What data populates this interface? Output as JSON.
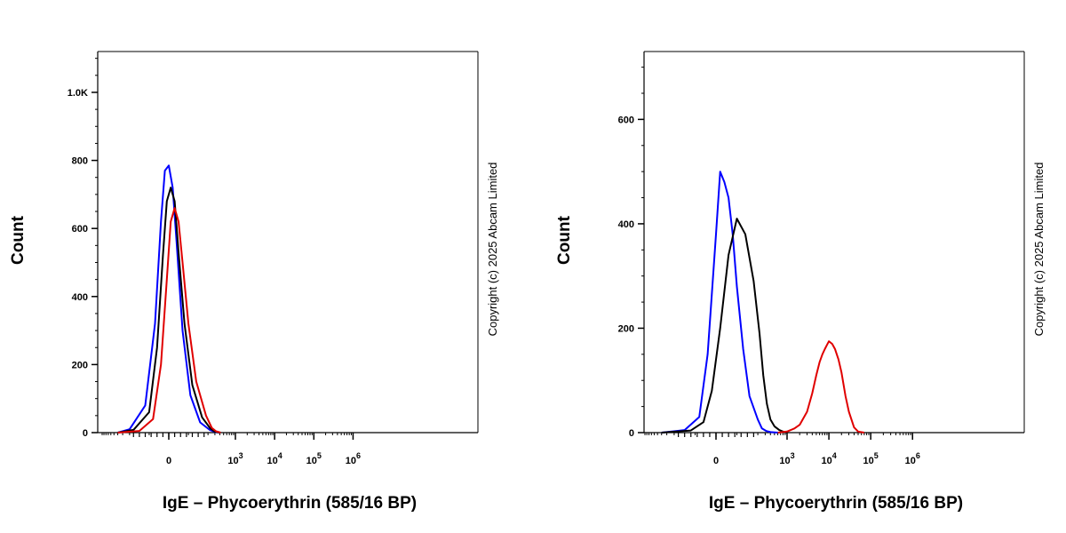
{
  "chart_data": [
    {
      "type": "line",
      "ylabel": "Count",
      "xlabel": "IgE – Phycoerythrin (585/16 BP)",
      "copyright": "Copyright (c) 2025 Abcam Limited",
      "x_scale": "biexponential",
      "xlim": [
        -400,
        1000000
      ],
      "ylim": [
        0,
        1120
      ],
      "y_ticks": [
        0,
        200,
        400,
        600,
        800,
        1000
      ],
      "y_tick_labels": [
        "0",
        "200",
        "400",
        "600",
        "800",
        "1.0K"
      ],
      "x_ticks": [
        0,
        1000,
        10000,
        100000,
        1000000
      ],
      "x_tick_labels": [
        {
          "base": "0",
          "exp": ""
        },
        {
          "base": "10",
          "exp": "3"
        },
        {
          "base": "10",
          "exp": "4"
        },
        {
          "base": "10",
          "exp": "5"
        },
        {
          "base": "10",
          "exp": "6"
        }
      ],
      "grid": false,
      "series": [
        {
          "color": "#0000ff",
          "x": [
            -400,
            -200,
            -120,
            -70,
            -40,
            -20,
            0,
            20,
            40,
            70,
            110,
            160,
            220,
            300,
            400
          ],
          "values": [
            0,
            10,
            80,
            320,
            620,
            770,
            785,
            720,
            560,
            300,
            110,
            30,
            8,
            2,
            0
          ]
        },
        {
          "color": "#000000",
          "x": [
            -400,
            -180,
            -100,
            -60,
            -30,
            -10,
            10,
            30,
            50,
            80,
            120,
            170,
            230,
            300,
            400
          ],
          "values": [
            0,
            8,
            60,
            250,
            520,
            680,
            720,
            680,
            530,
            320,
            140,
            45,
            12,
            3,
            0
          ]
        },
        {
          "color": "#e00000",
          "x": [
            -400,
            -150,
            -80,
            -40,
            -10,
            10,
            30,
            50,
            70,
            100,
            140,
            190,
            250,
            320,
            420
          ],
          "values": [
            0,
            5,
            40,
            200,
            450,
            620,
            660,
            620,
            500,
            320,
            150,
            50,
            14,
            4,
            0
          ]
        }
      ]
    },
    {
      "type": "line",
      "ylabel": "Count",
      "xlabel": "IgE – Phycoerythrin (585/16 BP)",
      "copyright": "Copyright (c) 2025 Abcam Limited",
      "x_scale": "biexponential",
      "xlim": [
        -400,
        1000000
      ],
      "ylim": [
        0,
        730
      ],
      "y_ticks": [
        0,
        200,
        400,
        600
      ],
      "y_tick_labels": [
        "0",
        "200",
        "400",
        "600"
      ],
      "x_ticks": [
        0,
        1000,
        10000,
        100000,
        1000000
      ],
      "x_tick_labels": [
        {
          "base": "0",
          "exp": ""
        },
        {
          "base": "10",
          "exp": "3"
        },
        {
          "base": "10",
          "exp": "4"
        },
        {
          "base": "10",
          "exp": "5"
        },
        {
          "base": "10",
          "exp": "6"
        }
      ],
      "grid": false,
      "series": [
        {
          "color": "#0000ff",
          "x": [
            -400,
            -150,
            -80,
            -40,
            0,
            20,
            40,
            60,
            80,
            100,
            130,
            160,
            200,
            250,
            320,
            400,
            600
          ],
          "values": [
            0,
            5,
            30,
            150,
            380,
            500,
            480,
            450,
            380,
            280,
            160,
            70,
            25,
            8,
            3,
            1,
            0
          ]
        },
        {
          "color": "#000000",
          "x": [
            -400,
            -120,
            -60,
            -20,
            20,
            60,
            100,
            140,
            180,
            220,
            270,
            330,
            400,
            500,
            650,
            800,
            1000
          ],
          "values": [
            0,
            4,
            20,
            80,
            200,
            340,
            410,
            380,
            290,
            190,
            110,
            55,
            25,
            12,
            5,
            2,
            0
          ]
        },
        {
          "color": "#e00000",
          "x": [
            600,
            1000,
            1500,
            2000,
            3000,
            4000,
            5000,
            6000,
            7000,
            8000,
            9000,
            10000,
            12000,
            14000,
            17000,
            20000,
            25000,
            30000,
            40000,
            50000,
            70000
          ],
          "values": [
            0,
            2,
            8,
            15,
            40,
            75,
            110,
            135,
            150,
            160,
            168,
            175,
            170,
            160,
            140,
            115,
            70,
            40,
            10,
            2,
            0
          ]
        }
      ]
    }
  ]
}
